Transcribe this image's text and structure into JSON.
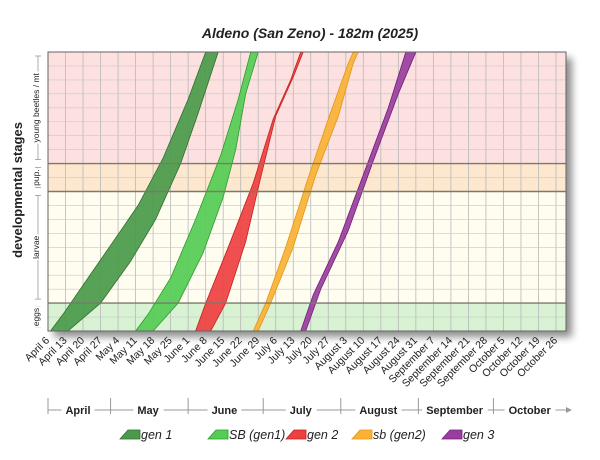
{
  "chart_data": {
    "type": "area",
    "title": "Aldeno (San Zeno) - 182m (2025)",
    "ylabel": "developmental stages",
    "stages": [
      {
        "label": "eggs",
        "from": 0,
        "to": 1,
        "color": "#d9f2d4"
      },
      {
        "label": "larvae",
        "from": 1,
        "to": 5,
        "color": "#fffdf0"
      },
      {
        "label": "pup.",
        "from": 5,
        "to": 6,
        "color": "#fde7cf"
      },
      {
        "label": "young beetles / mt",
        "from": 6,
        "to": 10,
        "color": "#fde0e0"
      }
    ],
    "ylim": [
      0,
      10
    ],
    "xlim": [
      "2025-04-06",
      "2025-10-30"
    ],
    "x_ticks": [
      "April 6",
      "April 13",
      "April 20",
      "April 27",
      "May 4",
      "May 11",
      "May 18",
      "May 25",
      "June 1",
      "June 8",
      "June 15",
      "June 22",
      "June 29",
      "July 6",
      "July 13",
      "July 20",
      "July 27",
      "August 3",
      "August 10",
      "August 17",
      "August 24",
      "August 31",
      "September 7",
      "September 14",
      "September 21",
      "September 28",
      "October 5",
      "October 12",
      "October 19",
      "October 26"
    ],
    "month_labels": [
      {
        "label": "April",
        "start": "2025-04-01",
        "end": "2025-04-30"
      },
      {
        "label": "May",
        "start": "2025-05-01",
        "end": "2025-05-31"
      },
      {
        "label": "June",
        "start": "2025-06-01",
        "end": "2025-06-30"
      },
      {
        "label": "July",
        "start": "2025-07-01",
        "end": "2025-07-31"
      },
      {
        "label": "August",
        "start": "2025-08-01",
        "end": "2025-08-31"
      },
      {
        "label": "September",
        "start": "2025-09-01",
        "end": "2025-09-30"
      },
      {
        "label": "October",
        "start": "2025-10-01",
        "end": "2025-10-31"
      }
    ],
    "series": [
      {
        "name": "gen 1",
        "color": "#4a9a4a",
        "stroke": "#2f6e2f",
        "early": [
          [
            "2025-04-07",
            0
          ],
          [
            "2025-04-12",
            0.6
          ],
          [
            "2025-04-22",
            1.9
          ],
          [
            "2025-05-02",
            3.2
          ],
          [
            "2025-05-12",
            4.5
          ],
          [
            "2025-05-22",
            6.2
          ],
          [
            "2025-06-01",
            8.3
          ],
          [
            "2025-06-08",
            10
          ]
        ],
        "late": [
          [
            "2025-04-14",
            0
          ],
          [
            "2025-04-27",
            1.0
          ],
          [
            "2025-05-09",
            2.5
          ],
          [
            "2025-05-19",
            4.0
          ],
          [
            "2025-05-29",
            6.0
          ],
          [
            "2025-06-05",
            7.8
          ],
          [
            "2025-06-13",
            10
          ]
        ]
      },
      {
        "name": "SB (gen1)",
        "color": "#55cc55",
        "stroke": "#2e9a2e",
        "early": [
          [
            "2025-05-11",
            0
          ],
          [
            "2025-05-16",
            0.6
          ],
          [
            "2025-05-25",
            1.9
          ],
          [
            "2025-06-04",
            4.0
          ],
          [
            "2025-06-14",
            6.3
          ],
          [
            "2025-06-21",
            8.3
          ],
          [
            "2025-06-26",
            10
          ]
        ],
        "late": [
          [
            "2025-05-18",
            0
          ],
          [
            "2025-05-28",
            1.0
          ],
          [
            "2025-06-07",
            2.8
          ],
          [
            "2025-06-15",
            4.8
          ],
          [
            "2025-06-20",
            6.5
          ],
          [
            "2025-06-24",
            8.5
          ],
          [
            "2025-06-29",
            10
          ]
        ]
      },
      {
        "name": "gen 2",
        "color": "#ee4040",
        "stroke": "#c42020",
        "early": [
          [
            "2025-06-04",
            0
          ],
          [
            "2025-06-08",
            1.0
          ],
          [
            "2025-06-17",
            3.0
          ],
          [
            "2025-06-27",
            5.3
          ],
          [
            "2025-07-05",
            7.6
          ],
          [
            "2025-07-12",
            9.0
          ],
          [
            "2025-07-16",
            10
          ]
        ],
        "late": [
          [
            "2025-06-10",
            0
          ],
          [
            "2025-06-16",
            1.0
          ],
          [
            "2025-06-24",
            3.2
          ],
          [
            "2025-06-30",
            5.5
          ],
          [
            "2025-07-06",
            7.7
          ],
          [
            "2025-07-13",
            9.1
          ],
          [
            "2025-07-17",
            10
          ]
        ]
      },
      {
        "name": "sb (gen2)",
        "color": "#f9b235",
        "stroke": "#e0961a",
        "early": [
          [
            "2025-06-27",
            0
          ],
          [
            "2025-07-02",
            1.0
          ],
          [
            "2025-07-10",
            3.0
          ],
          [
            "2025-07-19",
            5.5
          ],
          [
            "2025-07-27",
            7.6
          ],
          [
            "2025-08-04",
            9.6
          ],
          [
            "2025-08-06",
            10
          ]
        ],
        "late": [
          [
            "2025-06-29",
            0
          ],
          [
            "2025-07-04",
            1.0
          ],
          [
            "2025-07-13",
            3.0
          ],
          [
            "2025-07-22",
            5.6
          ],
          [
            "2025-07-31",
            7.7
          ],
          [
            "2025-08-06",
            9.6
          ],
          [
            "2025-08-08",
            10
          ]
        ]
      },
      {
        "name": "gen 3",
        "color": "#9b3da0",
        "stroke": "#6e2274",
        "early": [
          [
            "2025-07-16",
            0
          ],
          [
            "2025-07-21",
            1.3
          ],
          [
            "2025-07-31",
            3.2
          ],
          [
            "2025-08-10",
            5.6
          ],
          [
            "2025-08-20",
            8.0
          ],
          [
            "2025-08-27",
            10
          ]
        ],
        "late": [
          [
            "2025-07-18",
            0
          ],
          [
            "2025-07-24",
            1.5
          ],
          [
            "2025-08-04",
            3.6
          ],
          [
            "2025-08-14",
            6.1
          ],
          [
            "2025-08-24",
            8.5
          ],
          [
            "2025-08-31",
            10
          ]
        ]
      }
    ]
  }
}
